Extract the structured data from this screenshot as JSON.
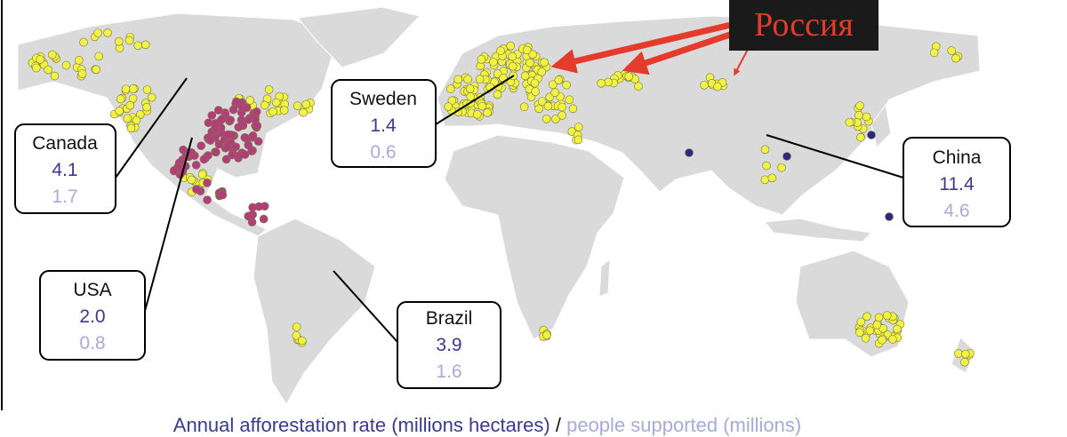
{
  "callouts": [
    {
      "country": "Canada",
      "rate": "4.1",
      "people": "1.7"
    },
    {
      "country": "USA",
      "rate": "2.0",
      "people": "0.8"
    },
    {
      "country": "Sweden",
      "rate": "1.4",
      "people": "0.6"
    },
    {
      "country": "Brazil",
      "rate": "3.9",
      "people": "1.6"
    },
    {
      "country": "China",
      "rate": "11.4",
      "people": "4.6"
    }
  ],
  "russia_label": "Россия",
  "caption": {
    "rate": "Annual afforestation rate (millions hectares)",
    "separator": "/",
    "people": "people supported (millions)"
  }
}
